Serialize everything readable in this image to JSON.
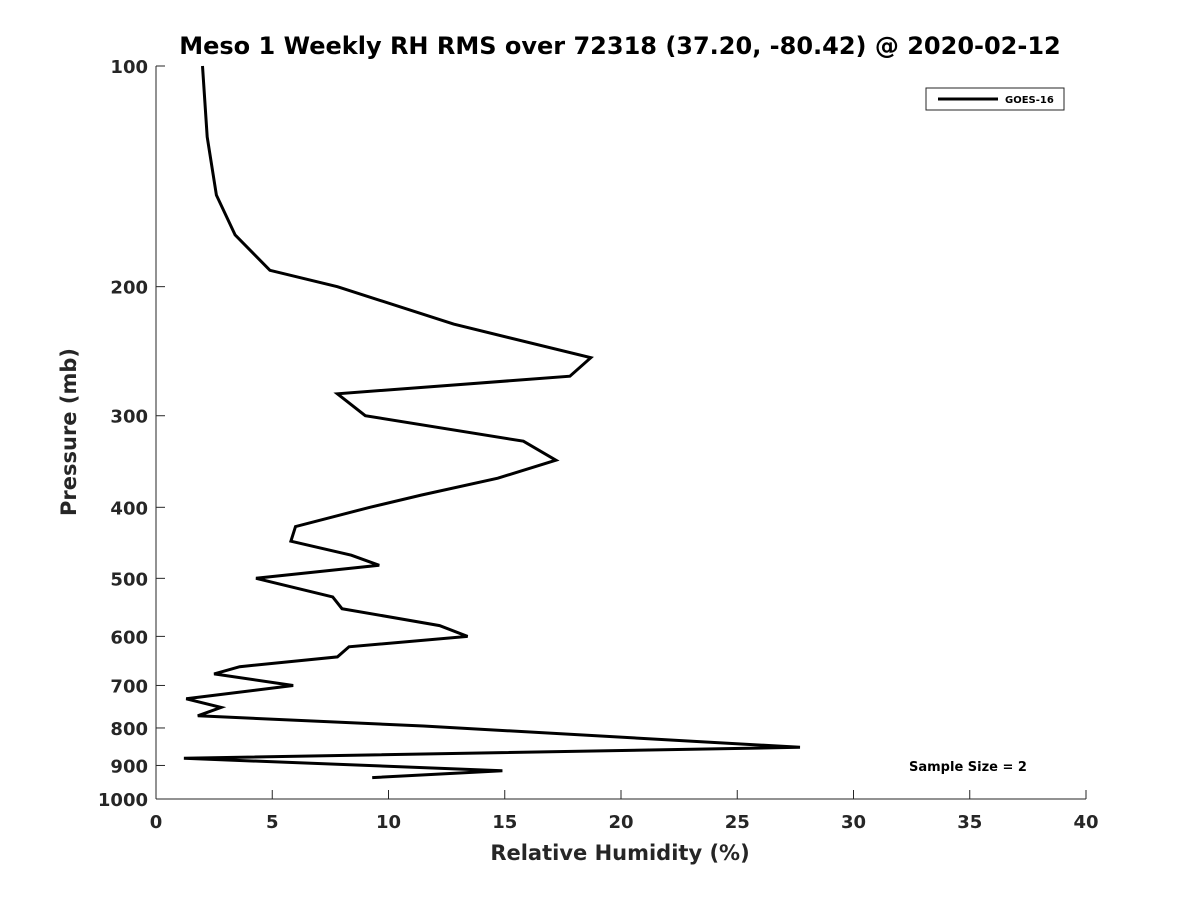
{
  "chart_data": {
    "type": "line",
    "title": "Meso 1 Weekly RH RMS over 72318 (37.20, -80.42) @ 2020-02-12",
    "xlabel": "Relative Humidity (%)",
    "ylabel": "Pressure (mb)",
    "xlim": [
      0,
      40
    ],
    "ylim": [
      100,
      1000
    ],
    "yscale": "log",
    "y_reversed": true,
    "x_ticks": [
      "0",
      "5",
      "10",
      "15",
      "20",
      "25",
      "30",
      "35",
      "40"
    ],
    "y_ticks": [
      "100",
      "200",
      "300",
      "400",
      "500",
      "600",
      "700",
      "800",
      "900",
      "1000"
    ],
    "legend_position": "top-right",
    "grid": false,
    "annotation": "Sample Size = 2",
    "series": [
      {
        "name": "GOES-16",
        "color": "#000000",
        "x": [
          2.0,
          2.2,
          2.6,
          3.4,
          4.9,
          7.8,
          12.8,
          18.7,
          17.8,
          7.8,
          9.0,
          15.8,
          17.2,
          14.7,
          11.4,
          9.2,
          6.0,
          5.8,
          8.4,
          9.6,
          4.3,
          7.6,
          8.0,
          12.2,
          13.4,
          8.3,
          7.8,
          3.6,
          2.5,
          5.9,
          1.3,
          2.8,
          1.8,
          11.5,
          27.7,
          1.2,
          14.9,
          9.3
        ],
        "y": [
          100,
          125,
          150,
          170,
          190,
          200,
          225,
          250,
          265,
          280,
          300,
          325,
          345,
          365,
          385,
          400,
          425,
          445,
          465,
          480,
          500,
          530,
          550,
          580,
          600,
          620,
          640,
          660,
          675,
          700,
          730,
          750,
          770,
          795,
          850,
          880,
          915,
          935
        ]
      }
    ]
  }
}
